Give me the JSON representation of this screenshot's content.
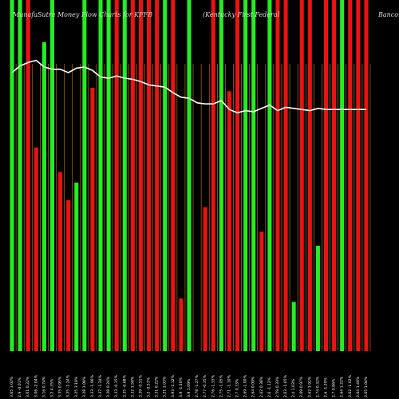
{
  "header": {
    "left": "MunafaSutra  Money Flow Charts for KFFB",
    "middle": "(Kentucky First Federal",
    "right": "Bancorp)"
  },
  "colors": {
    "background": "#000000",
    "up_bar": "#22ee22",
    "down_bar": "#ee1111",
    "line": "#ffffff",
    "grid": "#cc8800",
    "axis_text": "#ffffff"
  },
  "chart_data": {
    "type": "bar",
    "title": "MunafaSutra  Money Flow Charts for KFFB (Kentucky First Federal Bancorp)",
    "ylim": [
      0,
      100
    ],
    "categories": [
      "3.65 1.02%",
      "2.9 -0.01%",
      "3.01 0.22%",
      "3.06 -2.04%",
      "3.16 0.74%",
      "3.2 4.35%",
      "3.35 0.95%",
      "3.25 -1.24%",
      "3.25 3.18%",
      "3.28 1.08%",
      "3.33 -1.96%",
      "3.37 -1.34%",
      "3.28 0.24%",
      "3.33 -0.15%",
      "3.35 -0.68%",
      "3.32 1.58%",
      "3.39 -0.51%",
      "3.2 -0.53%",
      "3.31 0.22%",
      "3.21 1.03%",
      "3.93 -2.12%",
      "3.9 -1.40%",
      "3.9 1.09%",
      "2.78 -1.27%",
      "2.77 -0.35%",
      "2.76 -1.33%",
      "2.75 -1.05%",
      "2.71 -1.10%",
      "2.7 0.33%",
      "2.69 -1.00%",
      "2.64 0.09%",
      "2.62 0.38%",
      "2.6 -1.12%",
      "2.59 0.33%",
      "2.63 -1.65%",
      "2.4 1.03%",
      "2.69 0.97%",
      "2.62 1.91%",
      "2.74 0.32%",
      "2.6 -1.20%",
      "2.7 0.86%",
      "2.64 1.22%",
      "2.62 -1.02%",
      "2.64 1.46%",
      "2.65 1.04%"
    ],
    "series": [
      {
        "role": "money_flow_volume",
        "values": [
          100,
          100,
          100,
          58,
          88,
          100,
          51,
          43,
          48,
          100,
          75,
          100,
          100,
          100,
          100,
          100,
          100,
          100,
          100,
          100,
          100,
          15,
          100,
          0,
          41,
          100,
          100,
          74,
          100,
          100,
          100,
          34,
          100,
          100,
          100,
          14,
          100,
          100,
          30,
          100,
          100,
          100,
          100,
          100,
          100
        ],
        "colors": [
          "up",
          "up",
          "down",
          "down",
          "up",
          "up",
          "down",
          "down",
          "up",
          "up",
          "down",
          "up",
          "up",
          "down",
          "up",
          "down",
          "down",
          "down",
          "down",
          "up",
          "down",
          "down",
          "up",
          "down",
          "down",
          "down",
          "up",
          "down",
          "down",
          "up",
          "up",
          "down",
          "up",
          "down",
          "down",
          "up",
          "down",
          "down",
          "up",
          "down",
          "down",
          "up",
          "down",
          "down",
          "down"
        ]
      },
      {
        "role": "price",
        "values": [
          85,
          91,
          94,
          96,
          90,
          88,
          88,
          85,
          89,
          90,
          87,
          81,
          80,
          82,
          80,
          79,
          77,
          74,
          73,
          72,
          67,
          63,
          62,
          58,
          57,
          57,
          60,
          52,
          49,
          51,
          50,
          53,
          56,
          51,
          54,
          53,
          52,
          51,
          53,
          52,
          52,
          52,
          52,
          52,
          52
        ]
      }
    ],
    "bar_heights": [
      100,
      100,
      100,
      65,
      100,
      88,
      43,
      56,
      80,
      100,
      100,
      100,
      100,
      100,
      100,
      100,
      100,
      100,
      100,
      100,
      100,
      17,
      100,
      45,
      100,
      100,
      100,
      85,
      78,
      100,
      100,
      38,
      100,
      100,
      100,
      16,
      100,
      100,
      34,
      100,
      100,
      100,
      100,
      100,
      100
    ],
    "line": [
      85,
      93,
      98,
      101,
      92,
      94,
      91,
      90,
      97,
      97,
      95,
      86,
      92,
      91,
      92,
      85,
      79,
      76,
      76,
      72,
      72,
      72,
      79,
      69,
      64,
      65,
      65,
      67,
      72,
      67,
      73,
      71,
      70,
      69,
      71,
      70,
      70,
      70,
      70,
      70,
      70,
      70,
      70,
      70,
      70
    ],
    "labels_count": 45
  }
}
